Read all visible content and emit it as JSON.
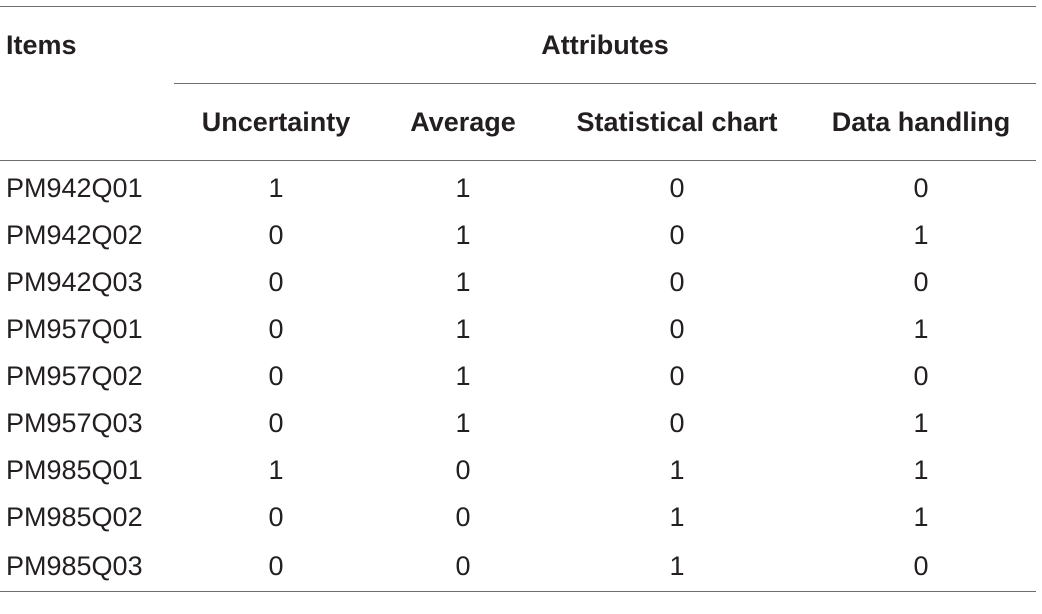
{
  "table": {
    "header": {
      "items_label": "Items",
      "attributes_label": "Attributes",
      "columns": [
        "Uncertainty",
        "Average",
        "Statistical chart",
        "Data handling"
      ]
    },
    "rows": [
      {
        "item": "PM942Q01",
        "values": [
          "1",
          "1",
          "0",
          "0"
        ]
      },
      {
        "item": "PM942Q02",
        "values": [
          "0",
          "1",
          "0",
          "1"
        ]
      },
      {
        "item": "PM942Q03",
        "values": [
          "0",
          "1",
          "0",
          "0"
        ]
      },
      {
        "item": "PM957Q01",
        "values": [
          "0",
          "1",
          "0",
          "1"
        ]
      },
      {
        "item": "PM957Q02",
        "values": [
          "0",
          "1",
          "0",
          "0"
        ]
      },
      {
        "item": "PM957Q03",
        "values": [
          "0",
          "1",
          "0",
          "1"
        ]
      },
      {
        "item": "PM985Q01",
        "values": [
          "1",
          "0",
          "1",
          "1"
        ]
      },
      {
        "item": "PM985Q02",
        "values": [
          "0",
          "0",
          "1",
          "1"
        ]
      },
      {
        "item": "PM985Q03",
        "values": [
          "0",
          "0",
          "1",
          "0"
        ]
      }
    ]
  }
}
